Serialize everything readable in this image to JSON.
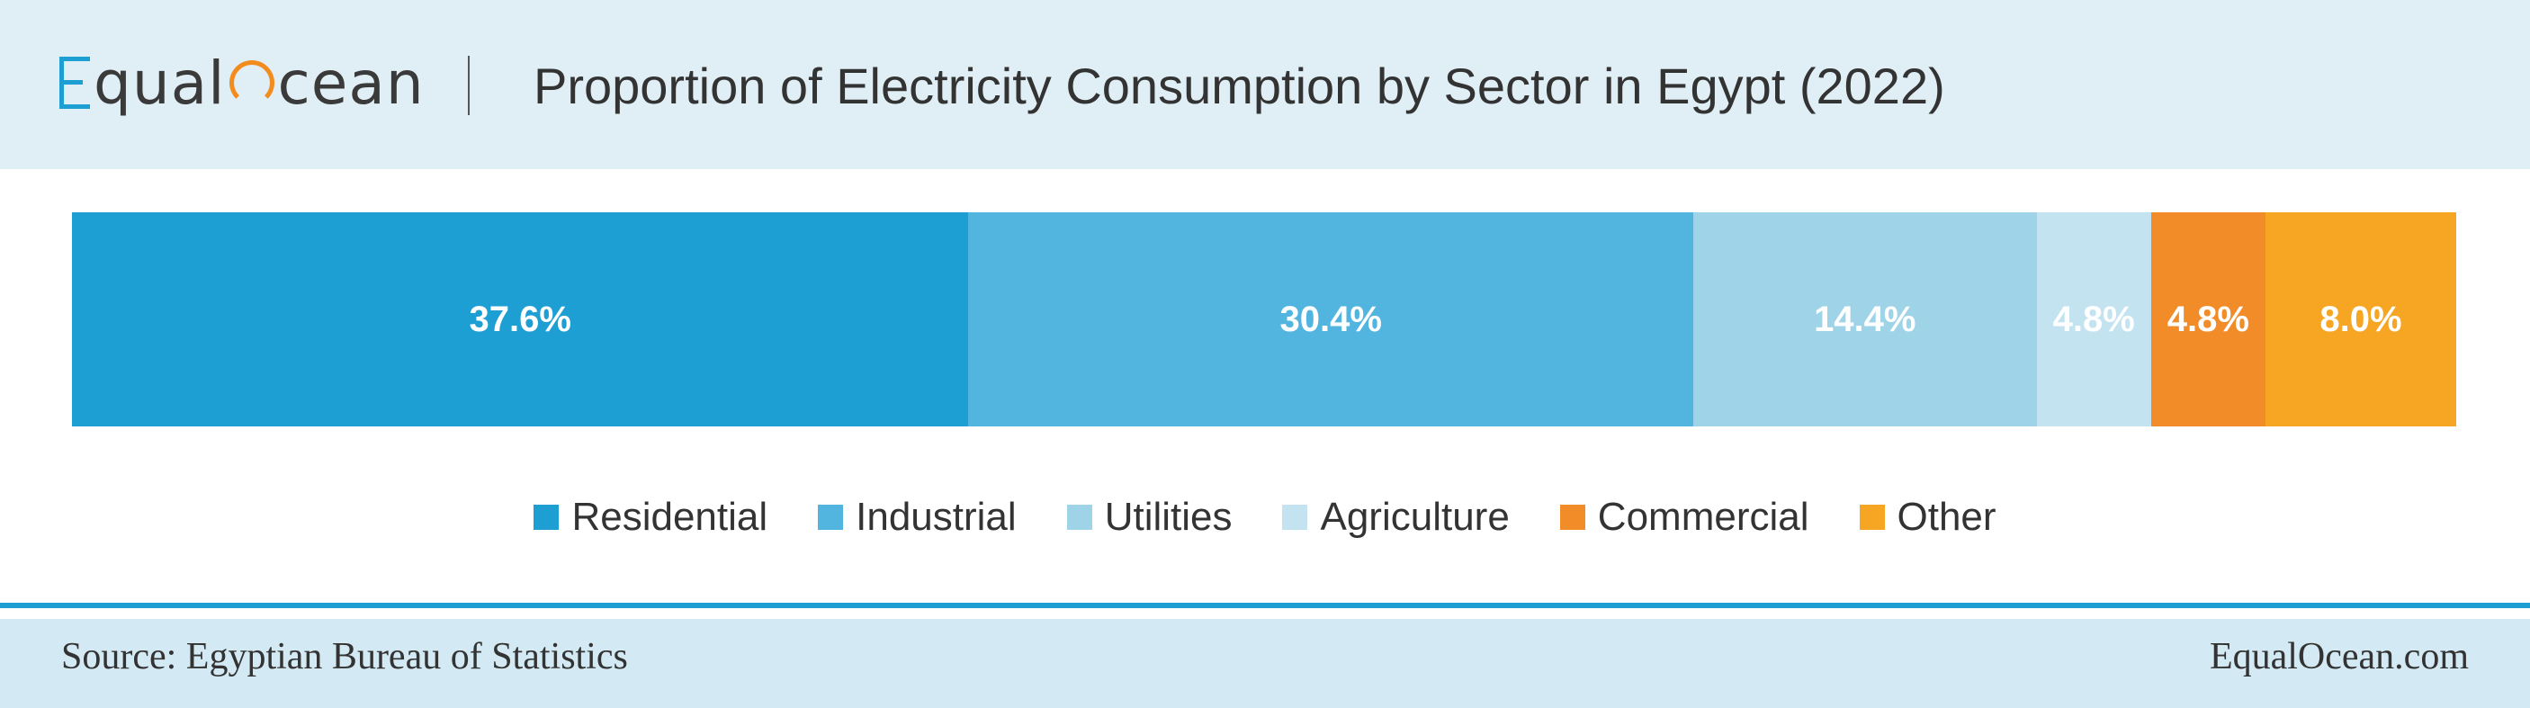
{
  "logo": {
    "text_before": "qual",
    "text_after": "cean"
  },
  "title": "Proportion of Electricity Consumption by Sector in Egypt (2022)",
  "chart_data": {
    "type": "bar",
    "subtype": "100%-stacked-horizontal",
    "title": "Proportion of Electricity Consumption by Sector in Egypt (2022)",
    "categories": [
      "Residential",
      "Industrial",
      "Utilities",
      "Agriculture",
      "Commercial",
      "Other"
    ],
    "values": [
      37.6,
      30.4,
      14.4,
      4.8,
      4.8,
      8.0
    ],
    "labels": [
      "37.6%",
      "30.4%",
      "14.4%",
      "4.8%",
      "4.8%",
      "8.0%"
    ],
    "colors": [
      "#1e9fd3",
      "#52b5df",
      "#9fd3e8",
      "#c4e3f0",
      "#f28c28",
      "#f6a623"
    ],
    "legend_position": "bottom",
    "grid": false
  },
  "footer": {
    "source": "Source: Egyptian Bureau of Statistics",
    "site": "EqualOcean.com"
  }
}
